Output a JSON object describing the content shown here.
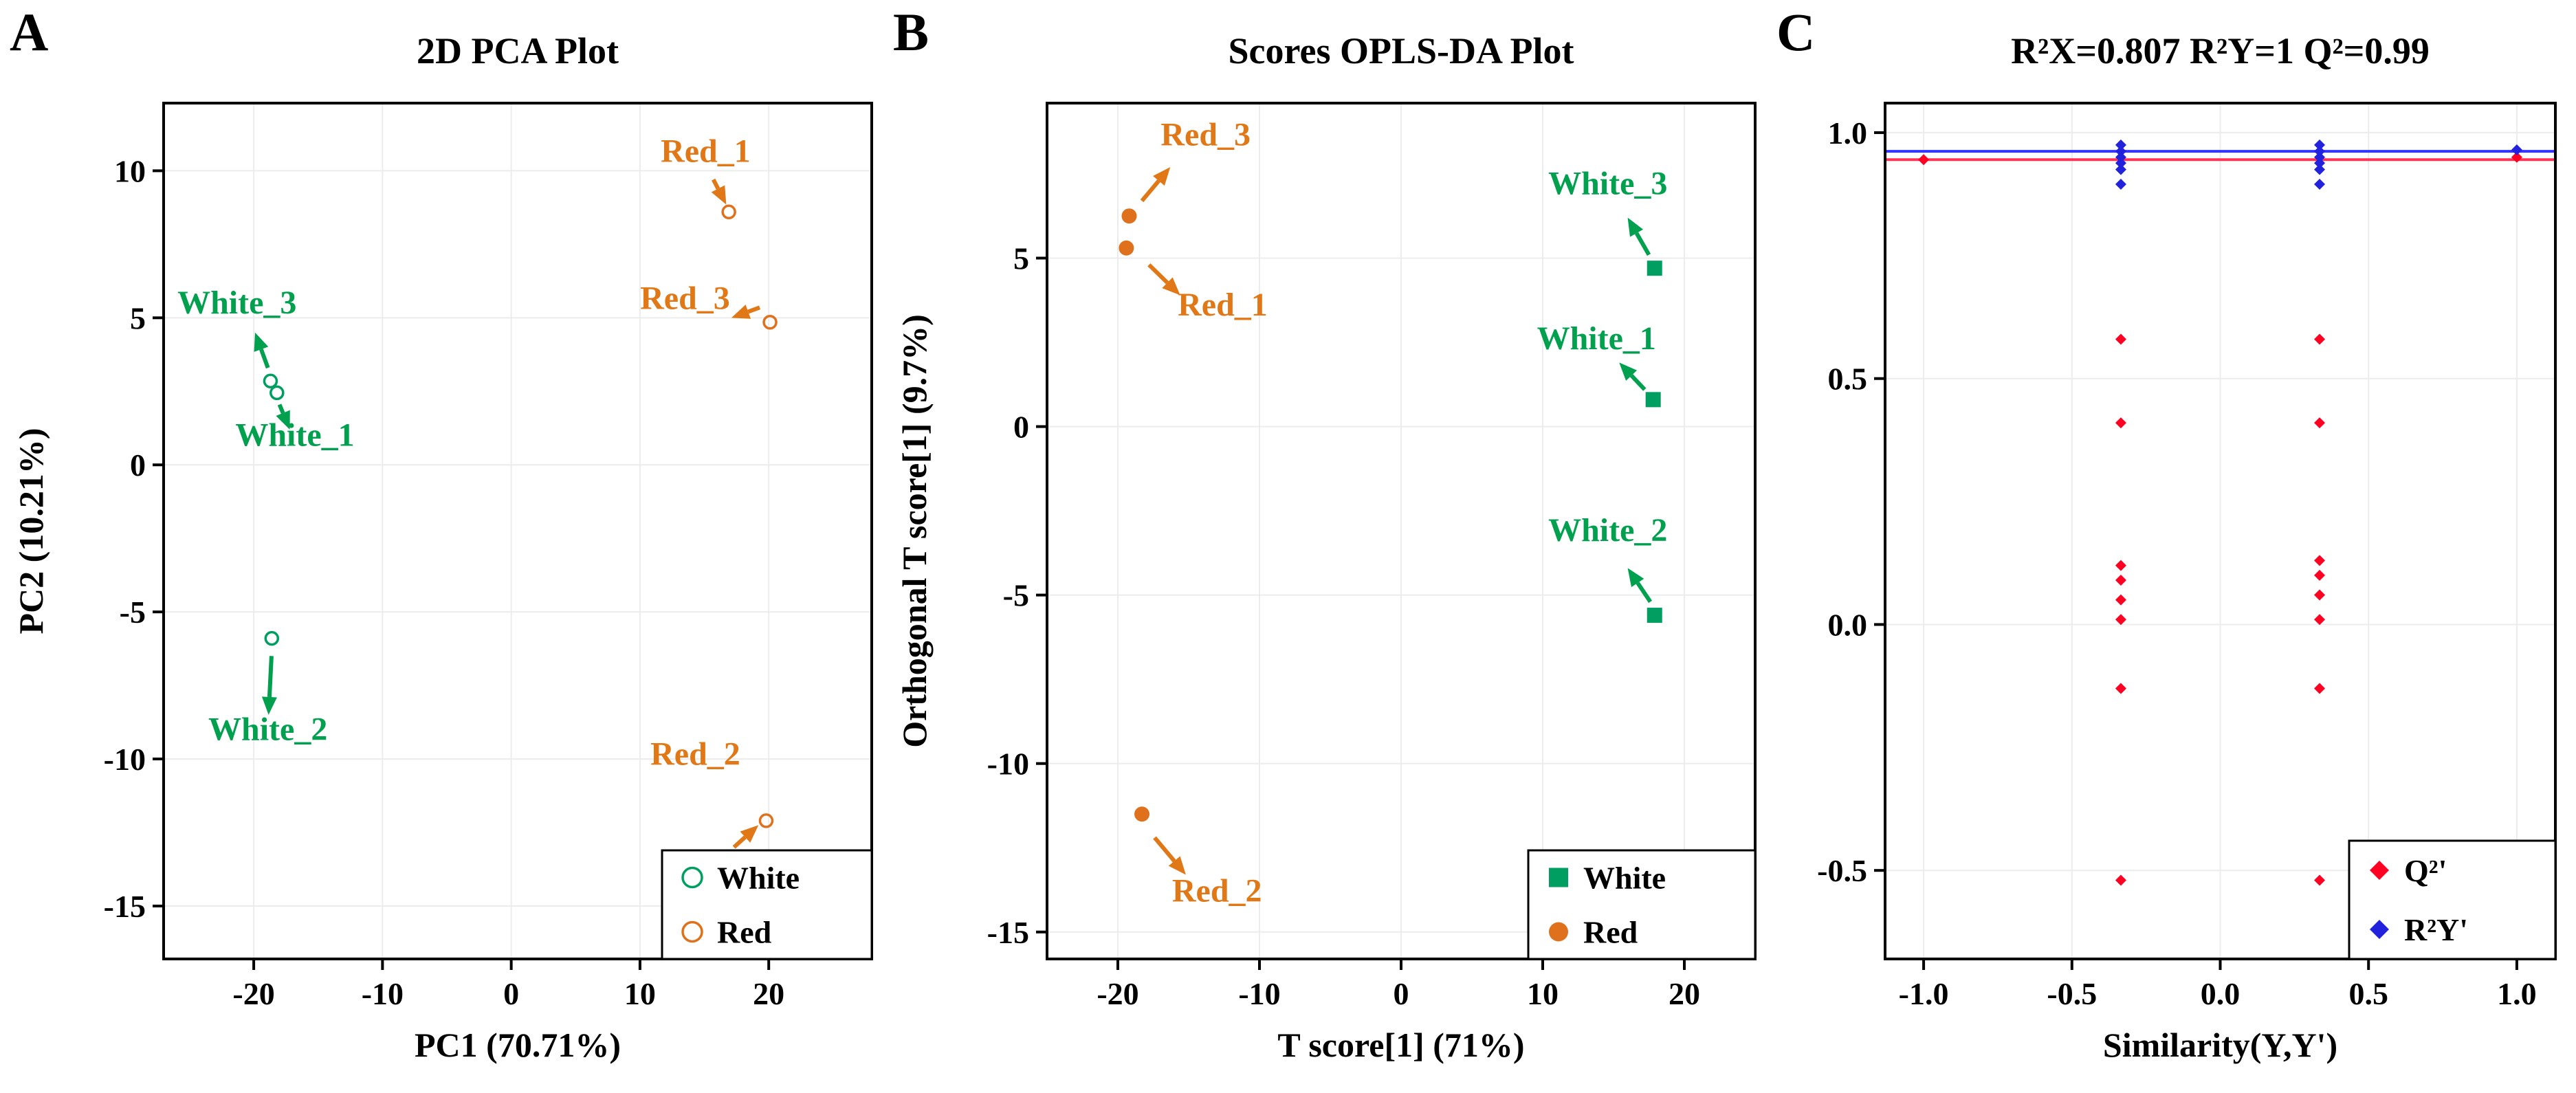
{
  "figure": {
    "background": "#ffffff",
    "panels": [
      {
        "letter": "A"
      },
      {
        "letter": "B"
      },
      {
        "letter": "C"
      }
    ]
  },
  "colors": {
    "white_group": "#009E60",
    "white_label": "#00A04F",
    "red_group": "#E0711C",
    "red_label": "#E07817",
    "q2_red": "#FF0022",
    "r2y_blue": "#2222DD",
    "grid": "#ECECEC",
    "axis": "#000000"
  },
  "chart_data": [
    {
      "panel": "A",
      "type": "scatter",
      "title": "2D PCA Plot",
      "xlabel": "PC1 (70.71%)",
      "ylabel": "PC2 (10.21%)",
      "xlim": [
        -27,
        28
      ],
      "ylim": [
        -16.8,
        12.3
      ],
      "grid": true,
      "legend_position": "bottom-right",
      "xticks": {
        "values": [
          -20,
          -10,
          0,
          10,
          20
        ],
        "labels": [
          "-20",
          "-10",
          "0",
          "10",
          "20"
        ]
      },
      "yticks": {
        "values": [
          -15,
          -10,
          -5,
          0,
          5,
          10
        ],
        "labels": [
          "-15",
          "-10",
          "-5",
          "0",
          "5",
          "10"
        ]
      },
      "series": [
        {
          "name": "White",
          "color": "#009E60",
          "marker": "open-circle",
          "points": [
            {
              "label": "White_3",
              "x": -18.7,
              "y": 2.85
            },
            {
              "label": "White_1",
              "x": -18.2,
              "y": 2.45
            },
            {
              "label": "White_2",
              "x": -18.6,
              "y": -5.9
            }
          ]
        },
        {
          "name": "Red",
          "color": "#E0711C",
          "marker": "open-circle",
          "points": [
            {
              "label": "Red_1",
              "x": 16.9,
              "y": 8.6
            },
            {
              "label": "Red_3",
              "x": 20.1,
              "y": 4.85
            },
            {
              "label": "Red_2",
              "x": 19.8,
              "y": -12.1
            }
          ]
        }
      ],
      "annotations": [
        {
          "text": "White_3",
          "x": -21.3,
          "y": 5.15,
          "color": "#00A04F",
          "arrow": {
            "x1": -18.9,
            "y1": 3.3,
            "x2": -19.9,
            "y2": 4.5
          }
        },
        {
          "text": "White_1",
          "x": -16.8,
          "y": 0.65,
          "color": "#00A04F",
          "arrow": {
            "x1": -18.0,
            "y1": 2.05,
            "x2": -17.2,
            "y2": 1.2
          }
        },
        {
          "text": "White_2",
          "x": -18.9,
          "y": -9.35,
          "color": "#00A04F",
          "arrow": {
            "x1": -18.62,
            "y1": -6.5,
            "x2": -18.85,
            "y2": -8.5
          }
        },
        {
          "text": "Red_1",
          "x": 15.1,
          "y": 10.3,
          "color": "#E07817",
          "arrow": {
            "x1": 15.7,
            "y1": 9.7,
            "x2": 16.7,
            "y2": 8.85
          }
        },
        {
          "text": "Red_3",
          "x": 13.5,
          "y": 5.3,
          "color": "#E07817",
          "arrow": {
            "x1": 19.3,
            "y1": 5.35,
            "x2": 17.1,
            "y2": 5.0
          }
        },
        {
          "text": "Red_2",
          "x": 14.3,
          "y": -10.2,
          "color": "#E07817",
          "arrow": {
            "x1": 17.3,
            "y1": -13.0,
            "x2": 19.2,
            "y2": -12.25
          }
        }
      ],
      "legend": {
        "items": [
          {
            "label": "White",
            "marker": "open-circle",
            "color": "#009E60"
          },
          {
            "label": "Red",
            "marker": "open-circle",
            "color": "#E0711C"
          }
        ]
      }
    },
    {
      "panel": "B",
      "type": "scatter",
      "title": "Scores OPLS-DA Plot",
      "xlabel": "T score[1] (71%)",
      "ylabel": "Orthogonal T score[1] (9.7%)",
      "xlim": [
        -25,
        25
      ],
      "ylim": [
        -15.8,
        9.6
      ],
      "grid": true,
      "legend_position": "bottom-right",
      "xticks": {
        "values": [
          -20,
          -10,
          0,
          10,
          20
        ],
        "labels": [
          "-20",
          "-10",
          "0",
          "10",
          "20"
        ]
      },
      "yticks": {
        "values": [
          -15,
          -10,
          -5,
          0,
          5
        ],
        "labels": [
          "-15",
          "-10",
          "-5",
          "0",
          "5"
        ]
      },
      "series": [
        {
          "name": "White",
          "color": "#009E60",
          "marker": "square",
          "points": [
            {
              "label": "White_3",
              "x": 17.9,
              "y": 4.7
            },
            {
              "label": "White_1",
              "x": 17.8,
              "y": 0.8
            },
            {
              "label": "White_2",
              "x": 17.9,
              "y": -5.6
            }
          ]
        },
        {
          "name": "Red",
          "color": "#E0711C",
          "marker": "circle",
          "points": [
            {
              "label": "Red_3",
              "x": -19.2,
              "y": 6.25
            },
            {
              "label": "Red_1",
              "x": -19.4,
              "y": 5.3
            },
            {
              "label": "Red_2",
              "x": -18.3,
              "y": -11.5
            }
          ]
        }
      ],
      "annotations": [
        {
          "text": "Red_3",
          "x": -13.8,
          "y": 8.35,
          "color": "#E07817",
          "arrow": {
            "x1": -18.3,
            "y1": 6.7,
            "x2": -16.3,
            "y2": 7.7
          }
        },
        {
          "text": "Red_1",
          "x": -12.6,
          "y": 3.3,
          "color": "#E07817",
          "arrow": {
            "x1": -17.8,
            "y1": 4.8,
            "x2": -15.6,
            "y2": 3.9
          }
        },
        {
          "text": "White_3",
          "x": 14.6,
          "y": 6.9,
          "color": "#00A04F",
          "arrow": {
            "x1": 17.5,
            "y1": 5.1,
            "x2": 16.0,
            "y2": 6.2
          }
        },
        {
          "text": "White_1",
          "x": 13.8,
          "y": 2.3,
          "color": "#00A04F",
          "arrow": {
            "x1": 17.2,
            "y1": 1.1,
            "x2": 15.4,
            "y2": 1.9
          }
        },
        {
          "text": "White_2",
          "x": 14.6,
          "y": -3.4,
          "color": "#00A04F",
          "arrow": {
            "x1": 17.6,
            "y1": -5.2,
            "x2": 16.0,
            "y2": -4.2
          }
        },
        {
          "text": "Red_2",
          "x": -13.0,
          "y": -14.1,
          "color": "#E07817",
          "arrow": {
            "x1": -17.4,
            "y1": -12.2,
            "x2": -15.2,
            "y2": -13.3
          }
        }
      ],
      "legend": {
        "items": [
          {
            "label": "White",
            "marker": "square",
            "color": "#009E60"
          },
          {
            "label": "Red",
            "marker": "circle",
            "color": "#E0711C"
          }
        ]
      }
    },
    {
      "panel": "C",
      "type": "scatter",
      "title": "R²X=0.807 R²Y=1 Q²=0.99",
      "xlabel": "Similarity(Y,Y')",
      "ylabel": "",
      "xlim": [
        -1.13,
        1.13
      ],
      "ylim": [
        -0.68,
        1.06
      ],
      "grid": true,
      "legend_position": "bottom-right",
      "xticks": {
        "values": [
          -1.0,
          -0.5,
          0.0,
          0.5,
          1.0
        ],
        "labels": [
          "-1.0",
          "-0.5",
          "0.0",
          "0.5",
          "1.0"
        ]
      },
      "yticks": {
        "values": [
          -0.5,
          0.0,
          0.5,
          1.0
        ],
        "labels": [
          "-0.5",
          "0.0",
          "0.5",
          "1.0"
        ]
      },
      "hlines": [
        {
          "y": 0.962,
          "color": "#3333FF"
        },
        {
          "y": 0.945,
          "color": "#FF3355"
        }
      ],
      "series": [
        {
          "name": "Q²'",
          "color": "#FF0022",
          "marker": "diamond",
          "points": [
            {
              "x": -1.0,
              "y": 0.945
            },
            {
              "x": -0.335,
              "y": 0.58
            },
            {
              "x": -0.335,
              "y": 0.41
            },
            {
              "x": -0.335,
              "y": 0.12
            },
            {
              "x": -0.335,
              "y": 0.09
            },
            {
              "x": -0.335,
              "y": 0.05
            },
            {
              "x": -0.335,
              "y": 0.01
            },
            {
              "x": -0.335,
              "y": -0.13
            },
            {
              "x": -0.335,
              "y": -0.52
            },
            {
              "x": 0.335,
              "y": 0.58
            },
            {
              "x": 0.335,
              "y": 0.41
            },
            {
              "x": 0.335,
              "y": 0.13
            },
            {
              "x": 0.335,
              "y": 0.1
            },
            {
              "x": 0.335,
              "y": 0.06
            },
            {
              "x": 0.335,
              "y": 0.01
            },
            {
              "x": 0.335,
              "y": -0.13
            },
            {
              "x": 0.335,
              "y": -0.52
            },
            {
              "x": 1.0,
              "y": 0.95
            }
          ]
        },
        {
          "name": "R²Y'",
          "color": "#2222DD",
          "marker": "diamond",
          "points": [
            {
              "x": -0.335,
              "y": 0.975
            },
            {
              "x": -0.335,
              "y": 0.962
            },
            {
              "x": -0.335,
              "y": 0.95
            },
            {
              "x": -0.335,
              "y": 0.938
            },
            {
              "x": -0.335,
              "y": 0.925
            },
            {
              "x": -0.335,
              "y": 0.895
            },
            {
              "x": 0.335,
              "y": 0.975
            },
            {
              "x": 0.335,
              "y": 0.962
            },
            {
              "x": 0.335,
              "y": 0.95
            },
            {
              "x": 0.335,
              "y": 0.938
            },
            {
              "x": 0.335,
              "y": 0.925
            },
            {
              "x": 0.335,
              "y": 0.895
            },
            {
              "x": 1.0,
              "y": 0.965
            }
          ]
        }
      ],
      "annotations": [],
      "legend": {
        "items": [
          {
            "label": "Q²'",
            "marker": "diamond",
            "color": "#FF0022"
          },
          {
            "label": "R²Y'",
            "marker": "diamond",
            "color": "#2222DD"
          }
        ]
      }
    }
  ]
}
